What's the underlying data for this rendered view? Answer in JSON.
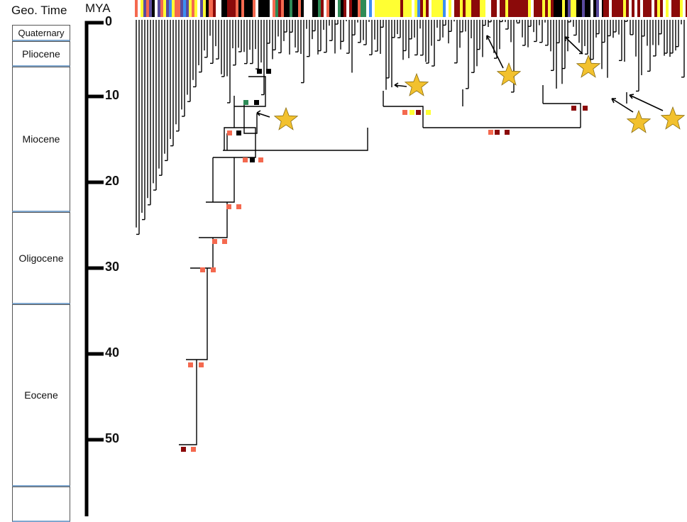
{
  "header": {
    "geo_time": "Geo. Time",
    "mya": "MYA"
  },
  "periods": [
    "Quaternary",
    "Pliocene",
    "Miocene",
    "Oligocene",
    "Eocene",
    ""
  ],
  "axis_ticks": [
    "0",
    "10",
    "20",
    "30",
    "40",
    "50"
  ],
  "colors": {
    "purple": "#5a4a9e",
    "salmon": "#f4694f",
    "yellow": "#ffff33",
    "black": "#000000",
    "darkred": "#8b0a0a",
    "blue": "#3d8ff0",
    "green": "#2e8b57",
    "star": "#f2c12e"
  }
}
